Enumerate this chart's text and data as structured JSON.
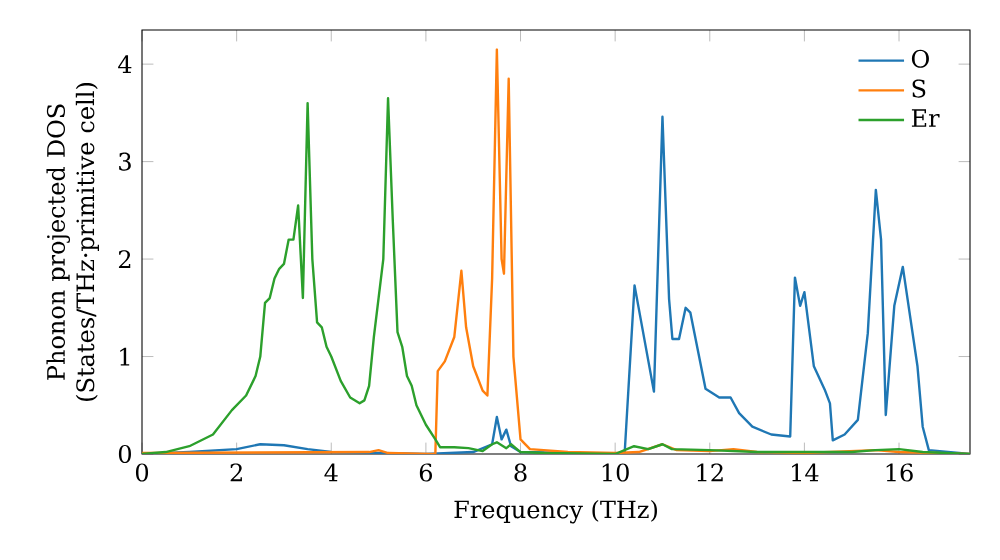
{
  "chart_data": {
    "type": "line",
    "xlabel": "Frequency (THz)",
    "ylabel": "Phonon projected DOS (States/THz·primitive cell)",
    "xlim": [
      0,
      17.5
    ],
    "ylim": [
      0,
      4.35
    ],
    "xticks": [
      0,
      2,
      4,
      6,
      8,
      10,
      12,
      14,
      16
    ],
    "yticks": [
      0,
      1,
      2,
      3,
      4
    ],
    "legend": "top right",
    "grid": false,
    "marker": "none",
    "line_style": "solid",
    "series": [
      {
        "name": "O",
        "color": "#1f77b4",
        "x": [
          0,
          1,
          2,
          2.5,
          3,
          3.5,
          4,
          6,
          7,
          7.4,
          7.5,
          7.6,
          7.7,
          7.8,
          8,
          10.2,
          10.41,
          10.82,
          11.0,
          11.14,
          11.21,
          11.35,
          11.49,
          11.59,
          11.91,
          12.2,
          12.44,
          12.62,
          12.9,
          13.3,
          13.7,
          13.8,
          13.91,
          14.0,
          14.2,
          14.43,
          14.54,
          14.6,
          14.85,
          15.13,
          15.34,
          15.51,
          15.62,
          15.72,
          15.9,
          16.08,
          16.39,
          16.5,
          16.63,
          17.5
        ],
        "values": [
          0,
          0.02,
          0.05,
          0.1,
          0.09,
          0.05,
          0.02,
          0,
          0.02,
          0.1,
          0.38,
          0.15,
          0.25,
          0.08,
          0.02,
          0,
          1.73,
          0.64,
          3.46,
          1.59,
          1.18,
          1.18,
          1.5,
          1.45,
          0.67,
          0.58,
          0.58,
          0.42,
          0.28,
          0.2,
          0.18,
          1.81,
          1.52,
          1.66,
          0.9,
          0.66,
          0.52,
          0.14,
          0.2,
          0.35,
          1.24,
          2.71,
          2.2,
          0.4,
          1.52,
          1.92,
          0.9,
          0.28,
          0.04,
          0
        ]
      },
      {
        "name": "S",
        "color": "#ff7f0e",
        "x": [
          0,
          4.8,
          5.0,
          5.2,
          6.1,
          6.2,
          6.25,
          6.4,
          6.6,
          6.75,
          6.85,
          7.0,
          7.2,
          7.3,
          7.4,
          7.5,
          7.6,
          7.65,
          7.75,
          7.85,
          8.0,
          8.2,
          9,
          10,
          10.5,
          11,
          11.3,
          12,
          12.5,
          13,
          14,
          15.5,
          16,
          17.5
        ],
        "values": [
          0.01,
          0.02,
          0.04,
          0.01,
          0,
          0,
          0.85,
          0.95,
          1.2,
          1.88,
          1.3,
          0.9,
          0.65,
          0.6,
          1.8,
          4.15,
          2.0,
          1.85,
          3.85,
          1.0,
          0.15,
          0.05,
          0.02,
          0.01,
          0.02,
          0.1,
          0.04,
          0.03,
          0.05,
          0.02,
          0.01,
          0.04,
          0.02,
          0
        ]
      },
      {
        "name": "Er",
        "color": "#2ca02c",
        "x": [
          0,
          0.5,
          1,
          1.5,
          1.9,
          2.2,
          2.4,
          2.5,
          2.6,
          2.7,
          2.8,
          2.9,
          3.0,
          3.1,
          3.2,
          3.3,
          3.4,
          3.5,
          3.6,
          3.7,
          3.8,
          3.9,
          4.0,
          4.2,
          4.4,
          4.6,
          4.7,
          4.8,
          4.9,
          5.0,
          5.1,
          5.2,
          5.3,
          5.4,
          5.5,
          5.6,
          5.7,
          5.8,
          6.0,
          6.2,
          6.3,
          6.6,
          6.9,
          7.2,
          7.4,
          7.5,
          7.7,
          7.8,
          8.0,
          8.5,
          10.0,
          10.4,
          10.7,
          11.0,
          11.2,
          12,
          13,
          14,
          15,
          15.5,
          16,
          16.5,
          17.5
        ],
        "values": [
          0,
          0.02,
          0.08,
          0.2,
          0.45,
          0.6,
          0.8,
          1.0,
          1.55,
          1.6,
          1.8,
          1.9,
          1.95,
          2.2,
          2.2,
          2.55,
          1.6,
          3.6,
          2.0,
          1.35,
          1.3,
          1.1,
          1.0,
          0.75,
          0.58,
          0.52,
          0.55,
          0.7,
          1.2,
          1.6,
          2.0,
          3.65,
          2.4,
          1.25,
          1.1,
          0.8,
          0.7,
          0.5,
          0.3,
          0.15,
          0.07,
          0.07,
          0.06,
          0.03,
          0.1,
          0.12,
          0.06,
          0.1,
          0.02,
          0.01,
          0,
          0.08,
          0.05,
          0.1,
          0.05,
          0.04,
          0.02,
          0.02,
          0.02,
          0.04,
          0.05,
          0.02,
          0
        ]
      }
    ]
  }
}
